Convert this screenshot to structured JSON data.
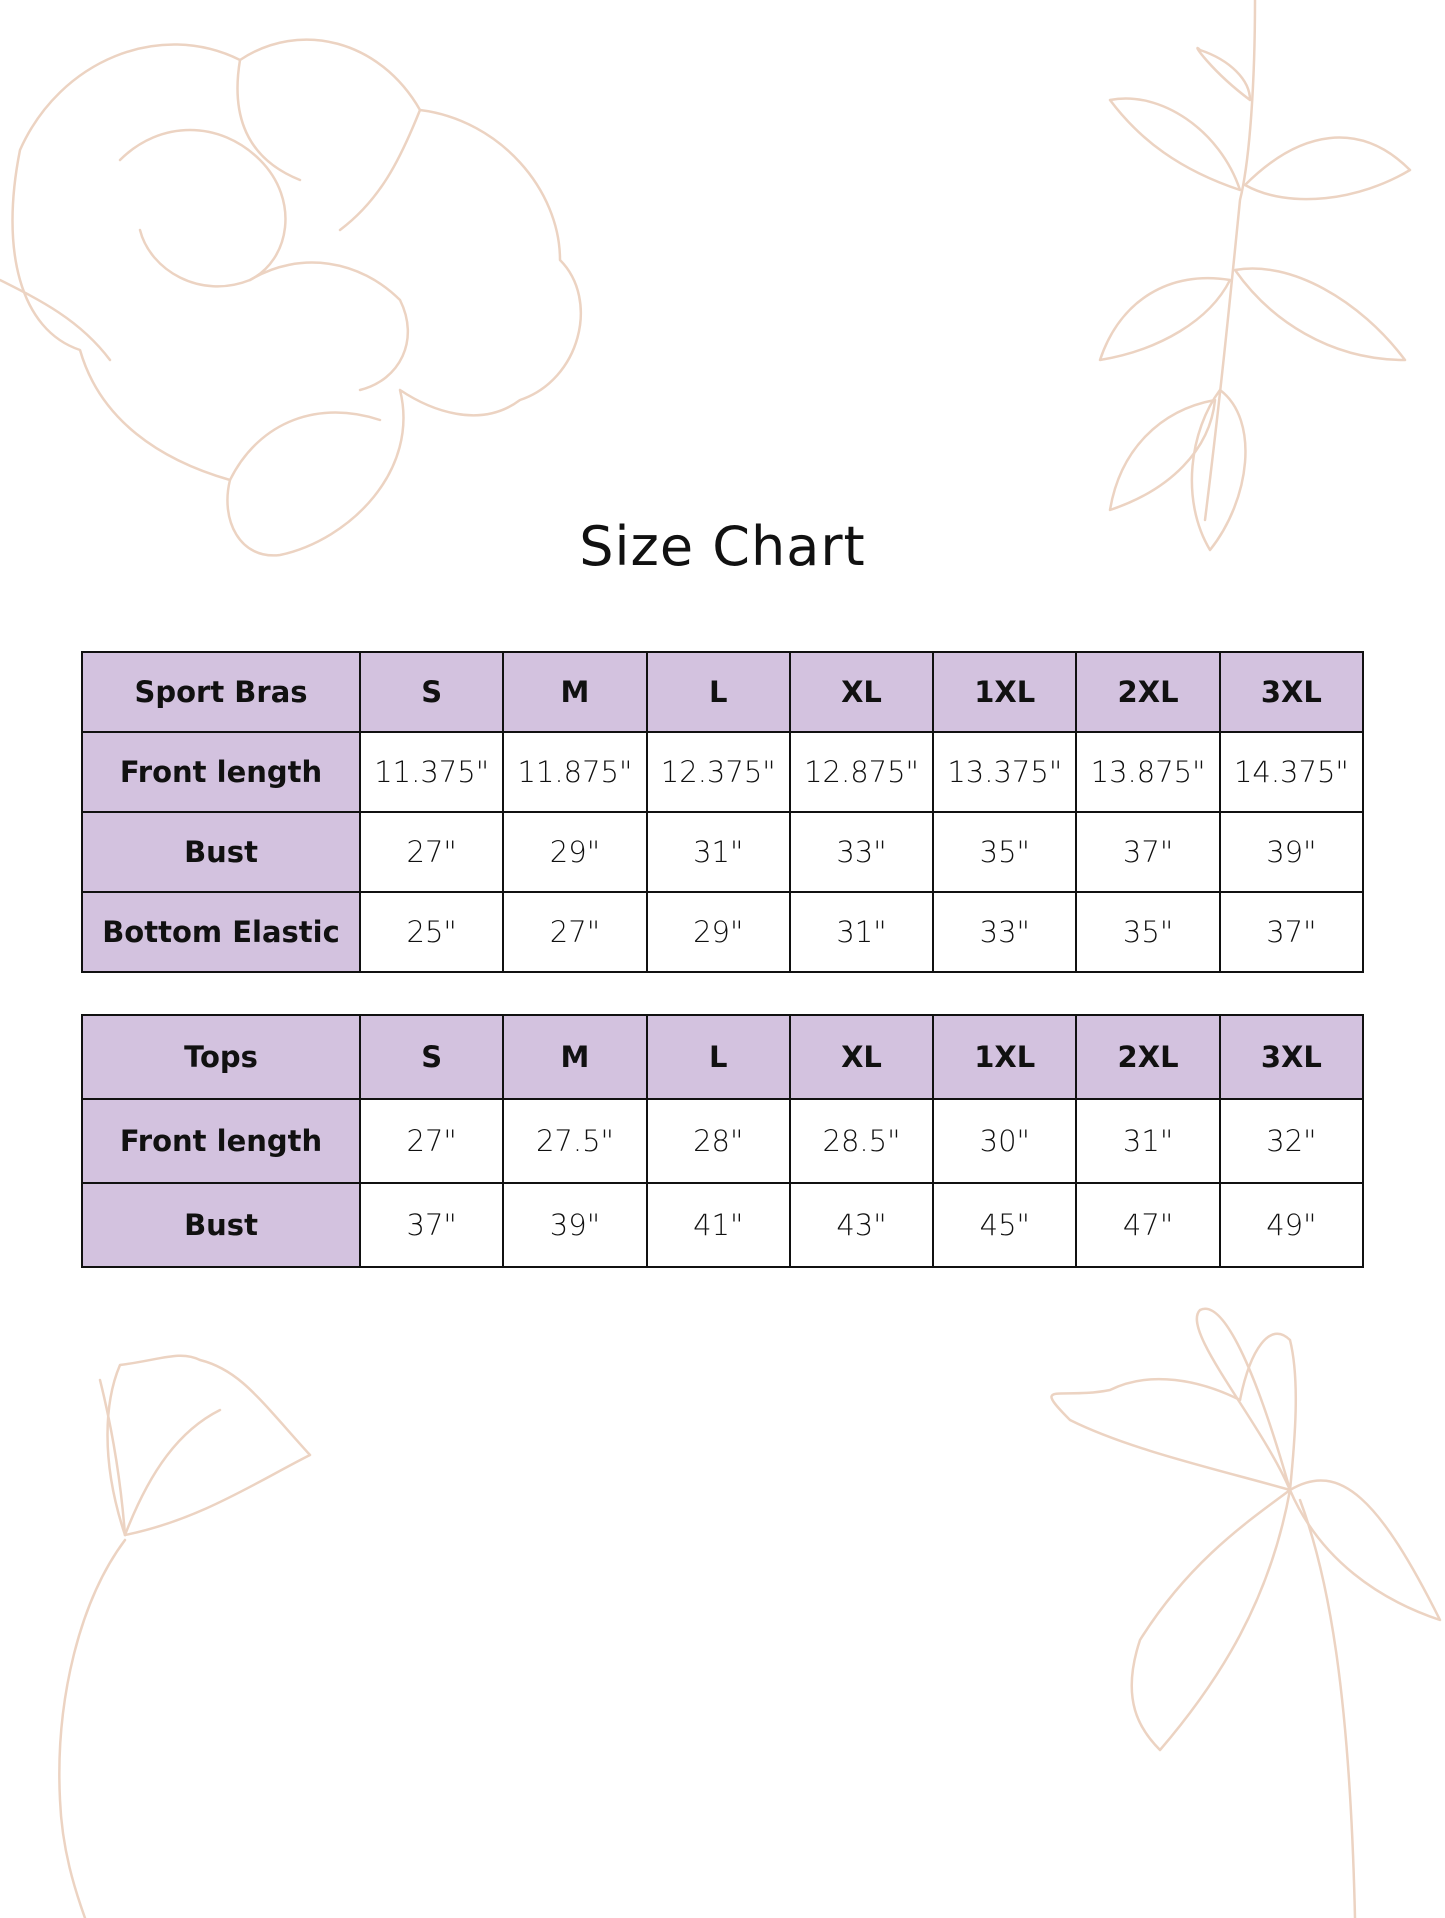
{
  "title": "Size Chart",
  "colors": {
    "header_bg": "#d3c2df",
    "floral_line": "#ecd3c2",
    "border": "#111111"
  },
  "tables": [
    {
      "header": [
        "Sport Bras",
        "S",
        "M",
        "L",
        "XL",
        "1XL",
        "2XL",
        "3XL"
      ],
      "rows": [
        {
          "label": "Front length",
          "values": [
            "11.375\"",
            "11.875\"",
            "12.375\"",
            "12.875\"",
            "13.375\"",
            "13.875\"",
            "14.375\""
          ]
        },
        {
          "label": "Bust",
          "values": [
            "27\"",
            "29\"",
            "31\"",
            "33\"",
            "35\"",
            "37\"",
            "39\""
          ]
        },
        {
          "label": "Bottom Elastic",
          "values": [
            "25\"",
            "27\"",
            "29\"",
            "31\"",
            "33\"",
            "35\"",
            "37\""
          ]
        }
      ]
    },
    {
      "header": [
        "Tops",
        "S",
        "M",
        "L",
        "XL",
        "1XL",
        "2XL",
        "3XL"
      ],
      "rows": [
        {
          "label": "Front length",
          "values": [
            "27\"",
            "27.5\"",
            "28\"",
            "28.5\"",
            "30\"",
            "31\"",
            "32\""
          ]
        },
        {
          "label": "Bust",
          "values": [
            "37\"",
            "39\"",
            "41\"",
            "43\"",
            "45\"",
            "47\"",
            "49\""
          ]
        }
      ]
    }
  ]
}
